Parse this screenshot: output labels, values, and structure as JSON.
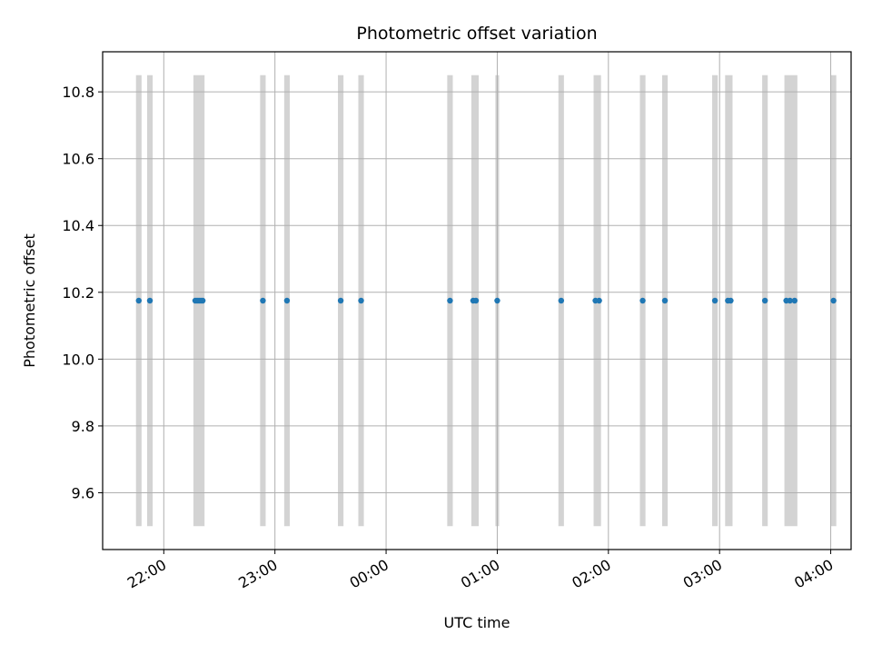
{
  "chart_data": {
    "type": "scatter",
    "title": "Photometric offset variation",
    "xlabel": "UTC time",
    "ylabel": "Photometric offset",
    "x_axis": "time",
    "xlim": [
      "2000-01-01T21:27:00",
      "2000-01-02T04:11:00"
    ],
    "ylim": [
      9.43,
      10.92
    ],
    "x_ticks": [
      {
        "t": "2000-01-01T22:00:00",
        "label": "22:00"
      },
      {
        "t": "2000-01-01T23:00:00",
        "label": "23:00"
      },
      {
        "t": "2000-01-02T00:00:00",
        "label": "00:00"
      },
      {
        "t": "2000-01-02T01:00:00",
        "label": "01:00"
      },
      {
        "t": "2000-01-02T02:00:00",
        "label": "02:00"
      },
      {
        "t": "2000-01-02T03:00:00",
        "label": "03:00"
      },
      {
        "t": "2000-01-02T04:00:00",
        "label": "04:00"
      }
    ],
    "y_ticks": [
      9.6,
      9.8,
      10.0,
      10.2,
      10.4,
      10.6,
      10.8
    ],
    "grid": true,
    "band_range": [
      9.5,
      10.85
    ],
    "bands": [
      {
        "start": "2000-01-01T21:45:00",
        "end": "2000-01-01T21:48:00"
      },
      {
        "start": "2000-01-01T21:51:00",
        "end": "2000-01-01T21:54:00"
      },
      {
        "start": "2000-01-01T22:16:00",
        "end": "2000-01-01T22:22:00"
      },
      {
        "start": "2000-01-01T22:52:00",
        "end": "2000-01-01T22:55:00"
      },
      {
        "start": "2000-01-01T23:05:00",
        "end": "2000-01-01T23:08:00"
      },
      {
        "start": "2000-01-01T23:34:00",
        "end": "2000-01-01T23:37:00"
      },
      {
        "start": "2000-01-01T23:45:00",
        "end": "2000-01-01T23:48:00"
      },
      {
        "start": "2000-01-02T00:33:00",
        "end": "2000-01-02T00:36:00"
      },
      {
        "start": "2000-01-02T00:46:00",
        "end": "2000-01-02T00:50:00"
      },
      {
        "start": "2000-01-02T00:59:00",
        "end": "2000-01-02T01:01:00"
      },
      {
        "start": "2000-01-02T01:33:00",
        "end": "2000-01-02T01:36:00"
      },
      {
        "start": "2000-01-02T01:52:00",
        "end": "2000-01-02T01:56:00"
      },
      {
        "start": "2000-01-02T02:17:00",
        "end": "2000-01-02T02:20:00"
      },
      {
        "start": "2000-01-02T02:29:00",
        "end": "2000-01-02T02:32:00"
      },
      {
        "start": "2000-01-02T02:56:00",
        "end": "2000-01-02T02:59:00"
      },
      {
        "start": "2000-01-02T03:03:00",
        "end": "2000-01-02T03:07:00"
      },
      {
        "start": "2000-01-02T03:23:00",
        "end": "2000-01-02T03:26:00"
      },
      {
        "start": "2000-01-02T03:35:00",
        "end": "2000-01-02T03:42:00"
      },
      {
        "start": "2000-01-02T04:00:00",
        "end": "2000-01-02T04:03:00"
      }
    ],
    "series": [
      {
        "color": "#1f77b4",
        "points": [
          {
            "t": "2000-01-01T21:46:30",
            "y": 10.175
          },
          {
            "t": "2000-01-01T21:52:30",
            "y": 10.175
          },
          {
            "t": "2000-01-01T22:17:00",
            "y": 10.175
          },
          {
            "t": "2000-01-01T22:18:00",
            "y": 10.175
          },
          {
            "t": "2000-01-01T22:19:00",
            "y": 10.175
          },
          {
            "t": "2000-01-01T22:20:00",
            "y": 10.175
          },
          {
            "t": "2000-01-01T22:21:00",
            "y": 10.175
          },
          {
            "t": "2000-01-01T22:53:30",
            "y": 10.175
          },
          {
            "t": "2000-01-01T23:06:30",
            "y": 10.175
          },
          {
            "t": "2000-01-01T23:35:30",
            "y": 10.175
          },
          {
            "t": "2000-01-01T23:46:30",
            "y": 10.175
          },
          {
            "t": "2000-01-02T00:34:30",
            "y": 10.175
          },
          {
            "t": "2000-01-02T00:47:00",
            "y": 10.175
          },
          {
            "t": "2000-01-02T00:48:30",
            "y": 10.175
          },
          {
            "t": "2000-01-02T01:00:00",
            "y": 10.175
          },
          {
            "t": "2000-01-02T01:34:30",
            "y": 10.175
          },
          {
            "t": "2000-01-02T01:53:00",
            "y": 10.175
          },
          {
            "t": "2000-01-02T01:55:00",
            "y": 10.175
          },
          {
            "t": "2000-01-02T02:18:30",
            "y": 10.175
          },
          {
            "t": "2000-01-02T02:30:30",
            "y": 10.175
          },
          {
            "t": "2000-01-02T02:57:30",
            "y": 10.175
          },
          {
            "t": "2000-01-02T03:04:30",
            "y": 10.175
          },
          {
            "t": "2000-01-02T03:06:00",
            "y": 10.175
          },
          {
            "t": "2000-01-02T03:24:30",
            "y": 10.175
          },
          {
            "t": "2000-01-02T03:36:00",
            "y": 10.175
          },
          {
            "t": "2000-01-02T03:38:00",
            "y": 10.175
          },
          {
            "t": "2000-01-02T03:40:30",
            "y": 10.175
          },
          {
            "t": "2000-01-02T04:01:30",
            "y": 10.175
          }
        ]
      }
    ],
    "band_color": "#d3d3d3",
    "grid_color": "#b0b0b0"
  }
}
